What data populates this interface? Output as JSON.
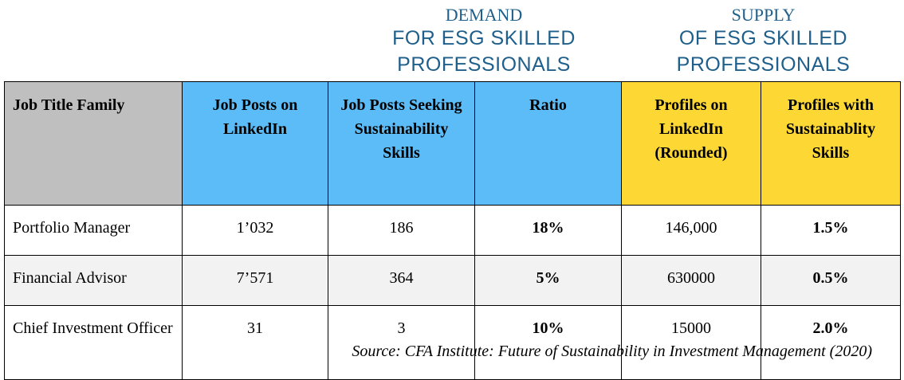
{
  "demand_heading": {
    "title": "DEMAND",
    "line1": "FOR ESG SKILLED",
    "line2": "PROFESSIONALS"
  },
  "supply_heading": {
    "title": "SUPPLY",
    "line1": "OF ESG SKILLED",
    "line2": "PROFESSIONALS"
  },
  "table": {
    "headers": [
      "Job Title Family",
      "Job Posts on LinkedIn",
      "Job Posts Seeking Sustainability Skills",
      "Ratio",
      "Profiles on LinkedIn (Rounded)",
      "Profiles with Sustainablity Skills"
    ],
    "rows": [
      [
        "Portfolio Manager",
        "1’032",
        "186",
        "18%",
        "146,000",
        "1.5%"
      ],
      [
        "Financial Advisor",
        "7’571",
        "364",
        "5%",
        "630000",
        "0.5%"
      ],
      [
        "Chief Investment Officer",
        "31",
        "3",
        "10%",
        "15000",
        "2.0%"
      ]
    ]
  },
  "source": "Source: CFA Institute: Future of Sustainability in Investment Management (2020)",
  "colors": {
    "heading_text": "#1f5f8b",
    "title_header_bg": "#bfbfbf",
    "demand_header_bg": "#5bbcf7",
    "supply_header_bg": "#fdd835",
    "alt_row_bg": "#f2f2f2"
  }
}
